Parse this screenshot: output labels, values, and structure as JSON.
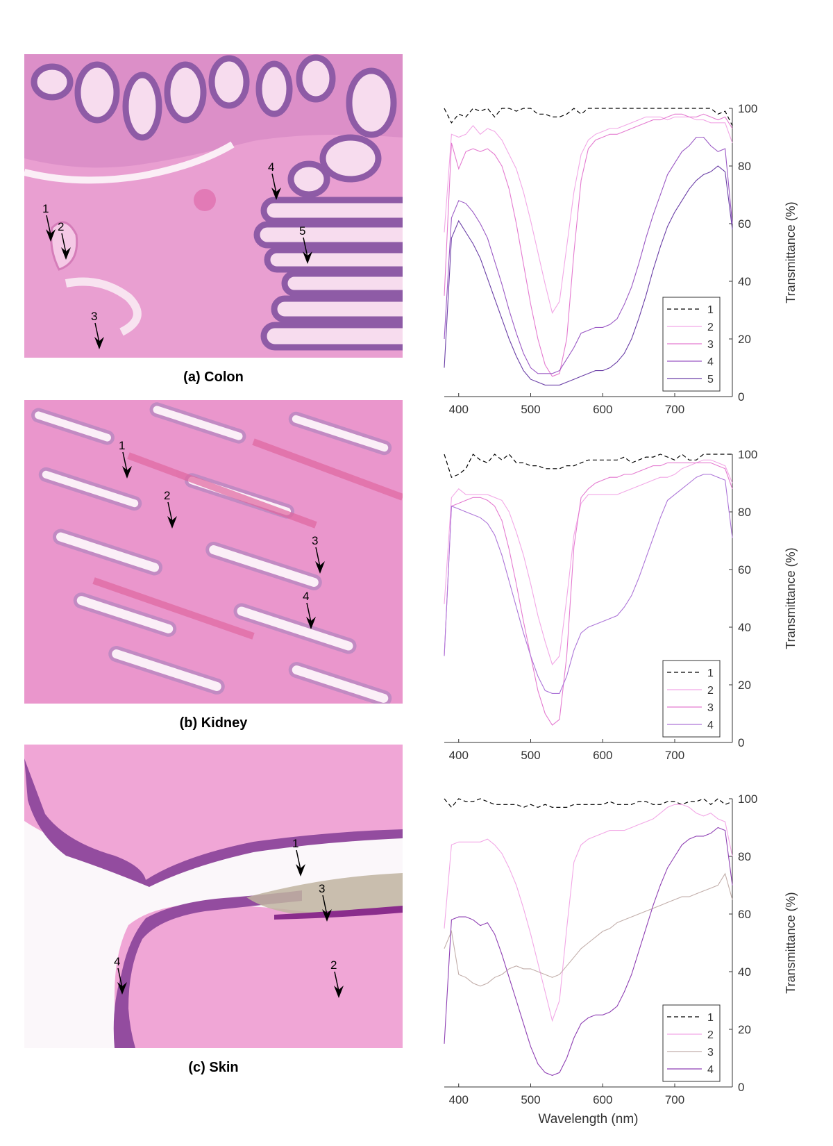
{
  "panels": [
    {
      "caption": "(a) Colon",
      "arrows": [
        "1",
        "2",
        "3",
        "4",
        "5"
      ],
      "tissue_colors": {
        "base": "#e99fd1",
        "dark": "#8e5ba6",
        "light": "#f7dcee"
      }
    },
    {
      "caption": "(b) Kidney",
      "arrows": [
        "1",
        "2",
        "3",
        "4"
      ],
      "tissue_colors": {
        "base": "#ea96cc",
        "dark": "#b174b4",
        "light": "#fbeff7"
      }
    },
    {
      "caption": "(c) Skin",
      "arrows": [
        "1",
        "2",
        "3",
        "4"
      ],
      "tissue_colors": {
        "base": "#f0a6d6",
        "dark": "#934c9f",
        "light": "#fbf7fa"
      }
    }
  ],
  "chart_data": [
    {
      "type": "line",
      "ylabel": "Transmittance (%)",
      "xlabel": "",
      "xlim": [
        380,
        780
      ],
      "ylim": [
        0,
        100
      ],
      "xticks": [
        400,
        500,
        600,
        700
      ],
      "yticks": [
        0,
        20,
        40,
        60,
        80,
        100
      ],
      "x": [
        380,
        390,
        400,
        410,
        420,
        430,
        440,
        450,
        460,
        470,
        480,
        490,
        500,
        510,
        520,
        530,
        540,
        550,
        560,
        570,
        580,
        590,
        600,
        610,
        620,
        630,
        640,
        650,
        660,
        670,
        680,
        690,
        700,
        710,
        720,
        730,
        740,
        750,
        760,
        770,
        780
      ],
      "series": [
        {
          "name": "1",
          "color": "#000000",
          "dash": true,
          "values": [
            100,
            95,
            98,
            97,
            100,
            99,
            100,
            97,
            100,
            100,
            99,
            100,
            100,
            98,
            98,
            97,
            97,
            98,
            100,
            98,
            100,
            100,
            100,
            100,
            100,
            100,
            100,
            100,
            100,
            100,
            100,
            100,
            100,
            100,
            100,
            100,
            100,
            100,
            98,
            99,
            94
          ]
        },
        {
          "name": "2",
          "color": "#f2a7e6",
          "values": [
            57,
            91,
            90,
            91,
            94,
            91,
            93,
            92,
            89,
            84,
            79,
            71,
            61,
            50,
            39,
            29,
            33,
            52,
            71,
            84,
            89,
            91,
            92,
            93,
            93,
            94,
            95,
            96,
            97,
            97,
            97,
            96,
            97,
            97,
            97,
            96,
            96,
            95,
            95,
            95,
            88
          ]
        },
        {
          "name": "3",
          "color": "#e47ad0",
          "values": [
            35,
            88,
            79,
            85,
            86,
            85,
            86,
            84,
            80,
            72,
            60,
            46,
            32,
            20,
            11,
            7,
            8,
            20,
            50,
            75,
            86,
            89,
            90,
            91,
            91,
            92,
            93,
            94,
            95,
            96,
            96,
            97,
            98,
            98,
            97,
            97,
            98,
            97,
            96,
            97,
            93
          ]
        },
        {
          "name": "4",
          "color": "#9a58c4",
          "values": [
            20,
            62,
            68,
            67,
            64,
            60,
            55,
            47,
            39,
            30,
            22,
            15,
            10,
            8,
            8,
            8,
            9,
            13,
            17,
            22,
            23,
            24,
            24,
            25,
            27,
            32,
            38,
            46,
            55,
            63,
            70,
            77,
            81,
            85,
            87,
            90,
            90,
            87,
            85,
            86,
            60
          ]
        },
        {
          "name": "5",
          "color": "#6a3ea6",
          "values": [
            10,
            55,
            61,
            57,
            53,
            48,
            41,
            34,
            27,
            20,
            14,
            9,
            6,
            5,
            4,
            4,
            4,
            5,
            6,
            7,
            8,
            9,
            9,
            10,
            12,
            15,
            20,
            27,
            35,
            44,
            52,
            59,
            64,
            68,
            72,
            75,
            77,
            78,
            80,
            78,
            58
          ]
        }
      ]
    },
    {
      "type": "line",
      "ylabel": "Transmittance (%)",
      "xlabel": "",
      "xlim": [
        380,
        780
      ],
      "ylim": [
        0,
        100
      ],
      "xticks": [
        400,
        500,
        600,
        700
      ],
      "yticks": [
        0,
        20,
        40,
        60,
        80,
        100
      ],
      "x": [
        380,
        390,
        400,
        410,
        420,
        430,
        440,
        450,
        460,
        470,
        480,
        490,
        500,
        510,
        520,
        530,
        540,
        550,
        560,
        570,
        580,
        590,
        600,
        610,
        620,
        630,
        640,
        650,
        660,
        670,
        680,
        690,
        700,
        710,
        720,
        730,
        740,
        750,
        760,
        770,
        780
      ],
      "series": [
        {
          "name": "1",
          "color": "#000000",
          "dash": true,
          "values": [
            100,
            92,
            93,
            95,
            100,
            98,
            97,
            100,
            98,
            100,
            97,
            97,
            96,
            96,
            95,
            95,
            95,
            96,
            96,
            97,
            98,
            98,
            98,
            98,
            98,
            99,
            97,
            98,
            99,
            99,
            100,
            99,
            98,
            100,
            98,
            98,
            100,
            100,
            100,
            100,
            100
          ]
        },
        {
          "name": "2",
          "color": "#f2a7e6",
          "values": [
            48,
            85,
            88,
            86,
            86,
            86,
            86,
            85,
            84,
            80,
            73,
            65,
            55,
            44,
            35,
            27,
            30,
            50,
            72,
            83,
            86,
            86,
            86,
            86,
            86,
            87,
            88,
            89,
            90,
            91,
            92,
            92,
            93,
            95,
            96,
            97,
            98,
            98,
            97,
            96,
            90
          ]
        },
        {
          "name": "3",
          "color": "#e47ad0",
          "values": [
            30,
            82,
            83,
            84,
            85,
            85,
            84,
            82,
            77,
            67,
            55,
            42,
            30,
            18,
            10,
            6,
            8,
            30,
            68,
            85,
            88,
            90,
            91,
            92,
            92,
            93,
            93,
            94,
            95,
            96,
            96,
            97,
            97,
            97,
            97,
            97,
            97,
            97,
            96,
            95,
            88
          ]
        },
        {
          "name": "4",
          "color": "#ad75d8",
          "values": [
            30,
            82,
            81,
            80,
            79,
            78,
            76,
            72,
            65,
            56,
            47,
            38,
            30,
            23,
            18,
            17,
            17,
            23,
            32,
            38,
            40,
            41,
            42,
            43,
            44,
            47,
            51,
            57,
            64,
            71,
            78,
            84,
            86,
            88,
            90,
            92,
            93,
            93,
            92,
            91,
            71
          ]
        }
      ]
    },
    {
      "type": "line",
      "ylabel": "Transmittance (%)",
      "xlabel": "Wavelength (nm)",
      "xlim": [
        380,
        780
      ],
      "ylim": [
        0,
        100
      ],
      "xticks": [
        400,
        500,
        600,
        700
      ],
      "yticks": [
        0,
        20,
        40,
        60,
        80,
        100
      ],
      "x": [
        380,
        390,
        400,
        410,
        420,
        430,
        440,
        450,
        460,
        470,
        480,
        490,
        500,
        510,
        520,
        530,
        540,
        550,
        560,
        570,
        580,
        590,
        600,
        610,
        620,
        630,
        640,
        650,
        660,
        670,
        680,
        690,
        700,
        710,
        720,
        730,
        740,
        750,
        760,
        770,
        780
      ],
      "series": [
        {
          "name": "1",
          "color": "#000000",
          "dash": true,
          "values": [
            100,
            97,
            100,
            99,
            99,
            100,
            99,
            98,
            98,
            98,
            98,
            97,
            98,
            97,
            98,
            97,
            97,
            97,
            98,
            98,
            98,
            98,
            98,
            99,
            98,
            98,
            98,
            99,
            99,
            98,
            98,
            99,
            99,
            98,
            99,
            99,
            100,
            98,
            100,
            98,
            99
          ]
        },
        {
          "name": "2",
          "color": "#f2a7e6",
          "values": [
            55,
            84,
            85,
            85,
            85,
            85,
            86,
            84,
            81,
            76,
            70,
            62,
            53,
            43,
            33,
            23,
            30,
            55,
            78,
            84,
            86,
            87,
            88,
            89,
            89,
            89,
            90,
            91,
            92,
            93,
            95,
            97,
            98,
            98,
            97,
            95,
            94,
            95,
            93,
            92,
            80
          ]
        },
        {
          "name": "3",
          "color": "#c2aeaa",
          "values": [
            48,
            54,
            39,
            38,
            36,
            35,
            36,
            38,
            39,
            41,
            42,
            41,
            41,
            40,
            39,
            38,
            39,
            42,
            45,
            48,
            50,
            52,
            54,
            55,
            57,
            58,
            59,
            60,
            61,
            62,
            63,
            64,
            65,
            66,
            66,
            67,
            68,
            69,
            70,
            74,
            65
          ]
        },
        {
          "name": "4",
          "color": "#8e3fb3",
          "values": [
            15,
            58,
            59,
            59,
            58,
            56,
            57,
            53,
            46,
            38,
            30,
            22,
            14,
            8,
            5,
            4,
            5,
            10,
            17,
            22,
            24,
            25,
            25,
            26,
            28,
            33,
            39,
            47,
            55,
            63,
            70,
            76,
            80,
            84,
            86,
            87,
            87,
            88,
            90,
            89,
            70
          ]
        }
      ]
    }
  ]
}
